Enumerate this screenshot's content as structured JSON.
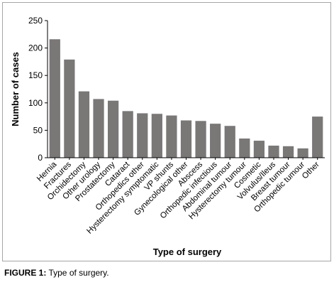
{
  "caption": {
    "label": "FIGURE 1:",
    "text": "Type of surgery."
  },
  "chart_data": {
    "type": "bar",
    "title": "",
    "xlabel": "Type of surgery",
    "ylabel": "Number of cases",
    "ylim": [
      0,
      250
    ],
    "yticks": [
      0,
      50,
      100,
      150,
      200,
      250
    ],
    "grid": false,
    "bar_color": "#7a7777",
    "categories": [
      "Hernia",
      "Fractures",
      "Orchidectomy",
      "Other urology",
      "Prostatectomy",
      "Cataract",
      "Orthopedics other",
      "Hysterectomy symptomatic",
      "VP shunts",
      "Gynecological other",
      "Abscess",
      "Orthopedic infectious",
      "Abdominal tumour",
      "Hysterectomy tumour",
      "Cosmetic",
      "Volvulus/Ileus",
      "Breast tumour",
      "Orthopedic tumour",
      "Other"
    ],
    "values": [
      216,
      179,
      121,
      107,
      104,
      85,
      81,
      80,
      77,
      68,
      67,
      62,
      58,
      35,
      31,
      22,
      21,
      17,
      75
    ]
  }
}
